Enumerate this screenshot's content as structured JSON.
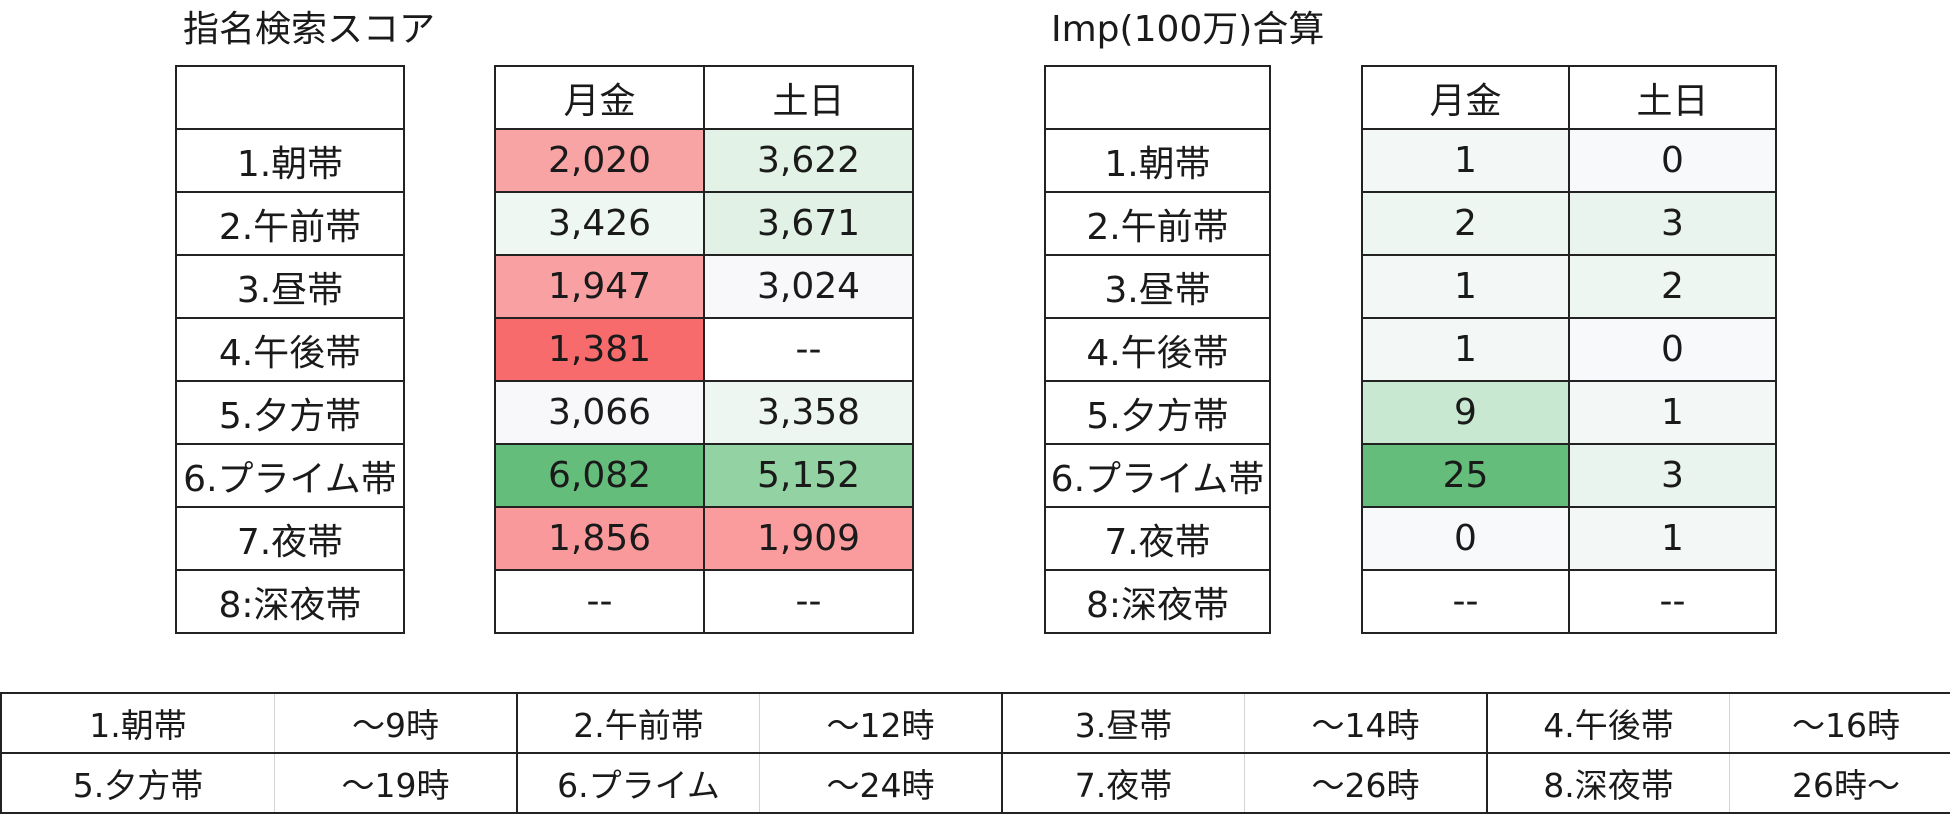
{
  "left": {
    "title": "指名検索スコア",
    "header": [
      "月金",
      "土日"
    ],
    "rows": [
      {
        "label": "1.朝帯",
        "mon_fri": "2,020",
        "sat_sun": "3,622"
      },
      {
        "label": "2.午前帯",
        "mon_fri": "3,426",
        "sat_sun": "3,671"
      },
      {
        "label": "3.昼帯",
        "mon_fri": "1,947",
        "sat_sun": "3,024"
      },
      {
        "label": "4.午後帯",
        "mon_fri": "1,381",
        "sat_sun": "--"
      },
      {
        "label": "5.夕方帯",
        "mon_fri": "3,066",
        "sat_sun": "3,358"
      },
      {
        "label": "6.プライム帯",
        "mon_fri": "6,082",
        "sat_sun": "5,152"
      },
      {
        "label": "7.夜帯",
        "mon_fri": "1,856",
        "sat_sun": "1,909"
      },
      {
        "label": "8:深夜帯",
        "mon_fri": "--",
        "sat_sun": "--"
      }
    ],
    "cell_colors": [
      [
        "#f8a3a4",
        "#e3f2e7"
      ],
      [
        "#eef7f1",
        "#e1f1e5"
      ],
      [
        "#f9a1a2",
        "#f8f8fb"
      ],
      [
        "#f76b6d",
        "#ffffff"
      ],
      [
        "#f8f8fb",
        "#edf6f0"
      ],
      [
        "#65bd7b",
        "#93d2a2"
      ],
      [
        "#f9999b",
        "#fa9c9e"
      ],
      [
        "#ffffff",
        "#ffffff"
      ]
    ]
  },
  "right": {
    "title": "Imp(100万)合算",
    "header": [
      "月金",
      "土日"
    ],
    "rows": [
      {
        "label": "1.朝帯",
        "mon_fri": "1",
        "sat_sun": "0"
      },
      {
        "label": "2.午前帯",
        "mon_fri": "2",
        "sat_sun": "3"
      },
      {
        "label": "3.昼帯",
        "mon_fri": "1",
        "sat_sun": "2"
      },
      {
        "label": "4.午後帯",
        "mon_fri": "1",
        "sat_sun": "0"
      },
      {
        "label": "5.夕方帯",
        "mon_fri": "9",
        "sat_sun": "1"
      },
      {
        "label": "6.プライム帯",
        "mon_fri": "25",
        "sat_sun": "3"
      },
      {
        "label": "7.夜帯",
        "mon_fri": "0",
        "sat_sun": "1"
      },
      {
        "label": "8:深夜帯",
        "mon_fri": "--",
        "sat_sun": "--"
      }
    ],
    "cell_colors": [
      [
        "#f3f8f6",
        "#f7f9fa"
      ],
      [
        "#eef6f1",
        "#eaf4ee"
      ],
      [
        "#f3f8f6",
        "#eef6f1"
      ],
      [
        "#f3f8f6",
        "#f7f9fa"
      ],
      [
        "#c8e8d1",
        "#f3f8f6"
      ],
      [
        "#65bd7b",
        "#eaf4ee"
      ],
      [
        "#f7f9fa",
        "#f3f8f6"
      ],
      [
        "#ffffff",
        "#ffffff"
      ]
    ]
  },
  "legend": {
    "rows": [
      [
        {
          "name": "1.朝帯",
          "time": "～9時"
        },
        {
          "name": "2.午前帯",
          "time": "～12時"
        },
        {
          "name": "3.昼帯",
          "time": "～14時"
        },
        {
          "name": "4.午後帯",
          "time": "～16時"
        }
      ],
      [
        {
          "name": "5.夕方帯",
          "time": "～19時"
        },
        {
          "name": "6.プライム",
          "time": "～24時"
        },
        {
          "name": "7.夜帯",
          "time": "～26時"
        },
        {
          "name": "8.深夜帯",
          "time": "26時～"
        }
      ]
    ]
  }
}
